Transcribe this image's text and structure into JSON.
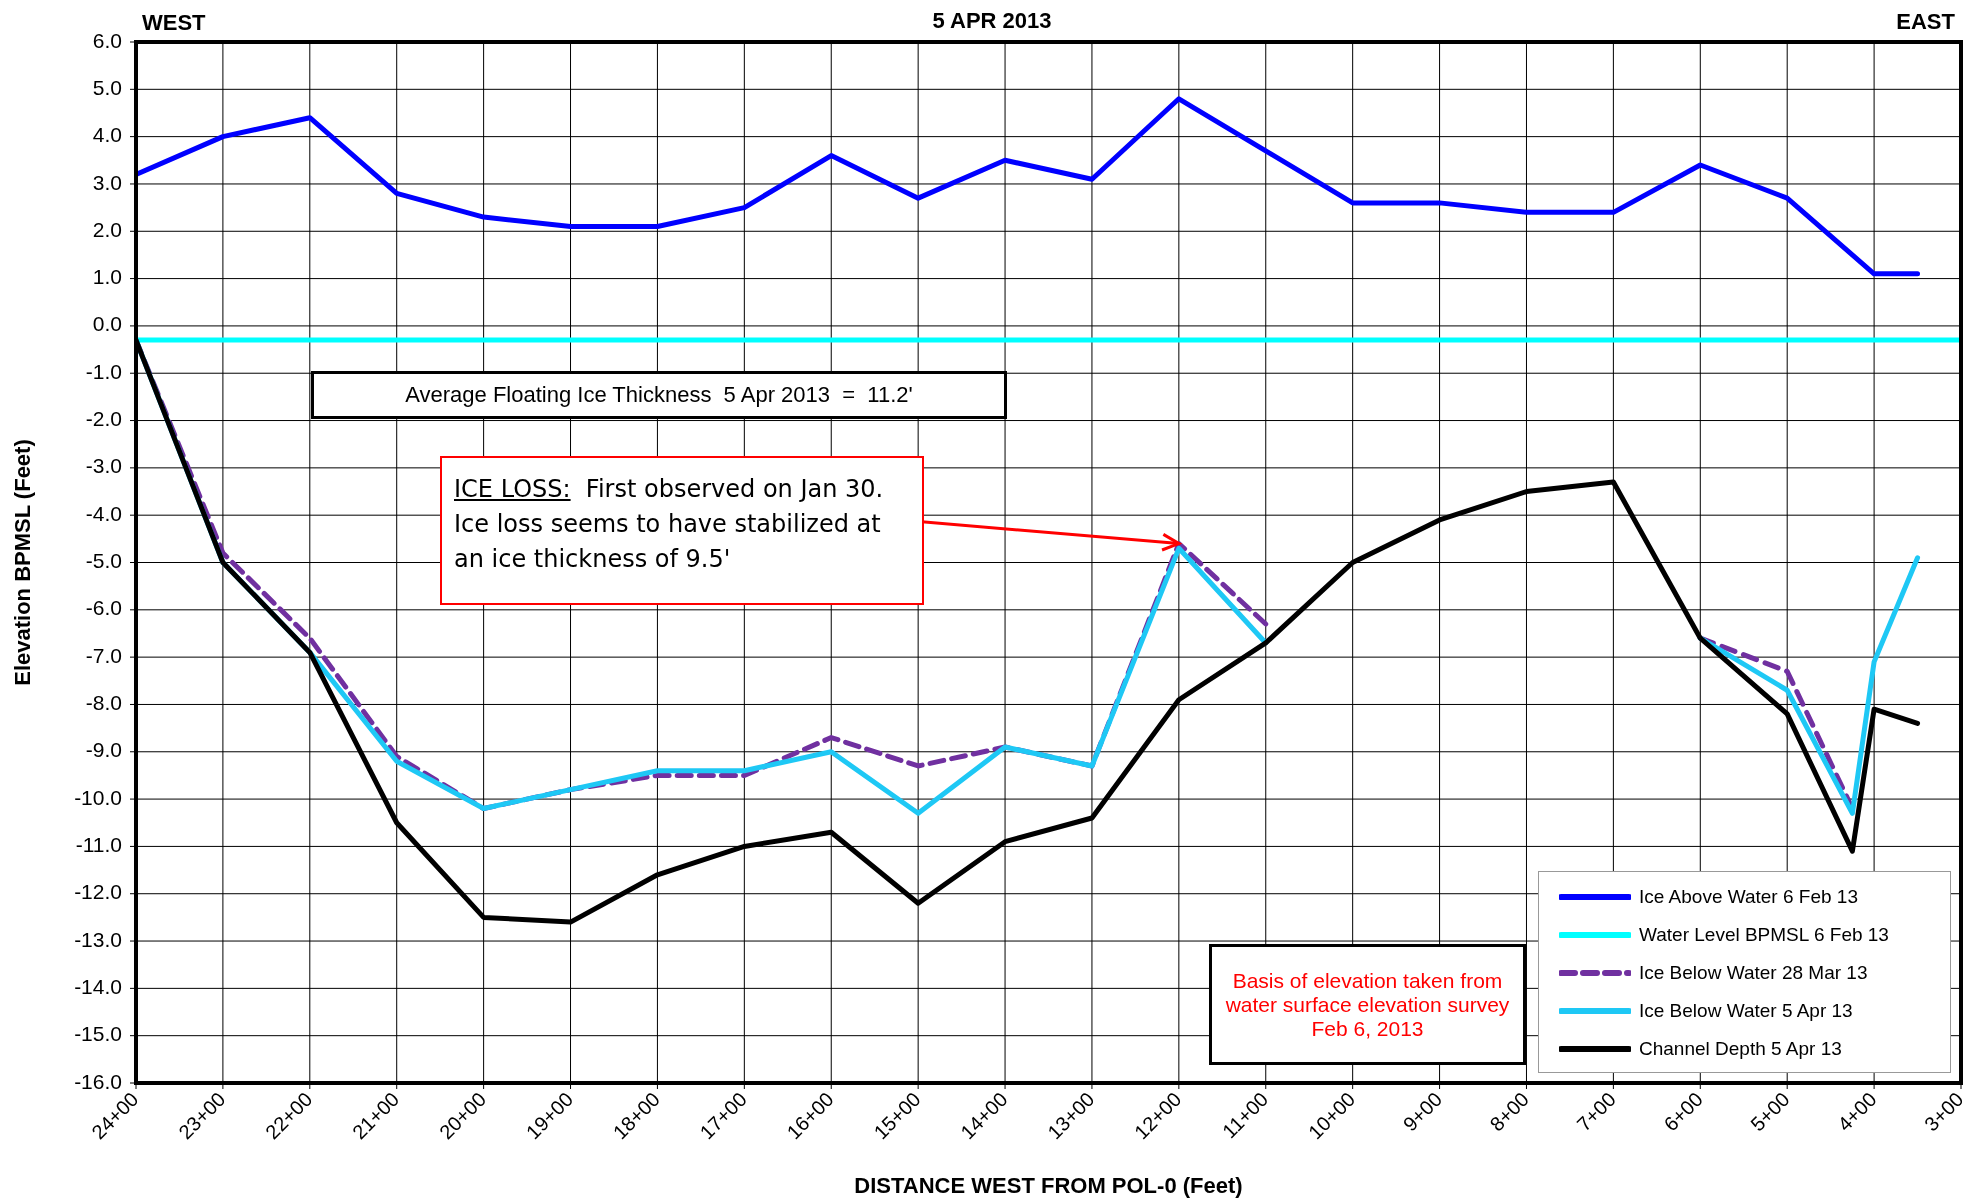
{
  "chart_data": {
    "type": "line",
    "title": "5 APR 2013",
    "xlabel": "DISTANCE WEST FROM POL-0 (Feet)",
    "ylabel": "Elevation BPMSL  (Feet)",
    "annotations": [
      "WEST",
      "EAST",
      "Average Floating Ice Thickness  5 Apr 2013  =  11.2'",
      {
        "text": "ICE LOSS:  First observed on Jan 30. Ice loss seems to have stabilized at an ice thickness of 9.5'",
        "x": "12+00",
        "y": -4.6
      },
      "Basis of elevation taken from water surface elevation survey Feb 6, 2013"
    ],
    "categories": [
      "24+00",
      null,
      null,
      null,
      "23+00",
      null,
      null,
      null,
      "22+00",
      null,
      null,
      null,
      "21+00",
      null,
      null,
      null,
      "20+00",
      null,
      null,
      null,
      "19+00",
      null,
      null,
      null,
      "18+00",
      null,
      null,
      null,
      "17+00",
      null,
      null,
      null,
      "16+00",
      null,
      null,
      null,
      "15+00",
      null,
      null,
      null,
      "14+00",
      null,
      null,
      null,
      "13+00",
      null,
      null,
      null,
      "12+00",
      null,
      null,
      null,
      "11+00",
      null,
      null,
      null,
      "10+00",
      null,
      null,
      null,
      "9+00",
      null,
      null,
      null,
      "8+00",
      null,
      null,
      null,
      "7+00",
      null,
      null,
      null,
      "6+00",
      null,
      null,
      null,
      "5+00",
      null,
      null,
      null,
      "4+00",
      null,
      null,
      null,
      "3+00"
    ],
    "series": [
      {
        "name": "Ice Above Water 6 Feb 13",
        "color": "#0000ff",
        "values": [
          3.2,
          null,
          null,
          null,
          4.0,
          null,
          null,
          null,
          4.4,
          null,
          null,
          null,
          2.8,
          null,
          null,
          null,
          2.3,
          null,
          null,
          null,
          2.1,
          null,
          null,
          null,
          2.1,
          null,
          null,
          null,
          2.5,
          null,
          null,
          null,
          3.6,
          null,
          null,
          null,
          2.7,
          null,
          null,
          null,
          3.5,
          null,
          null,
          null,
          3.1,
          null,
          null,
          null,
          4.8,
          null,
          null,
          null,
          3.7,
          null,
          null,
          null,
          2.6,
          null,
          null,
          null,
          2.6,
          null,
          null,
          null,
          2.4,
          null,
          null,
          null,
          2.4,
          null,
          null,
          null,
          3.4,
          null,
          null,
          null,
          2.7,
          null,
          null,
          null,
          1.1,
          null,
          1.1,
          null,
          null
        ]
      },
      {
        "name": "Water Level  BPMSL 6 Feb 13",
        "color": "#00ffff",
        "values": [
          -0.3,
          null,
          null,
          null,
          null,
          null,
          null,
          null,
          null,
          null,
          null,
          null,
          null,
          null,
          null,
          null,
          null,
          null,
          null,
          null,
          null,
          null,
          null,
          null,
          null,
          null,
          null,
          null,
          null,
          null,
          null,
          null,
          null,
          null,
          null,
          null,
          null,
          null,
          null,
          null,
          null,
          null,
          null,
          null,
          null,
          null,
          null,
          null,
          null,
          null,
          null,
          null,
          null,
          null,
          null,
          null,
          null,
          null,
          null,
          null,
          null,
          null,
          null,
          null,
          null,
          null,
          null,
          null,
          null,
          null,
          null,
          null,
          null,
          null,
          null,
          null,
          null,
          null,
          null,
          null,
          null,
          null,
          null,
          null,
          -0.3
        ]
      },
      {
        "name": "Ice Below Water 28 Mar 13",
        "color": "#7030a0",
        "line_style": "dashed",
        "values": [
          -0.3,
          null,
          null,
          null,
          -4.8,
          null,
          null,
          null,
          -6.6,
          null,
          null,
          null,
          -9.1,
          null,
          null,
          null,
          -10.2,
          null,
          null,
          null,
          -9.8,
          null,
          null,
          null,
          -9.5,
          null,
          null,
          null,
          -9.5,
          null,
          null,
          null,
          -8.7,
          null,
          null,
          null,
          -9.3,
          null,
          null,
          null,
          -8.9,
          null,
          null,
          null,
          -9.3,
          null,
          null,
          null,
          -4.6,
          null,
          null,
          null,
          -6.3,
          null,
          null,
          null,
          null,
          null,
          null,
          null,
          null,
          null,
          null,
          null,
          null,
          null,
          null,
          null,
          null,
          null,
          null,
          null,
          null,
          null,
          null,
          null,
          null,
          null,
          null,
          null,
          null,
          null,
          null,
          null,
          null
        ]
      },
      {
        "color": "#7030a0",
        "line_style": "dashed",
        "values": [
          null,
          null,
          null,
          null,
          null,
          null,
          null,
          null,
          null,
          null,
          null,
          null,
          null,
          null,
          null,
          null,
          null,
          null,
          null,
          null,
          null,
          null,
          null,
          null,
          null,
          null,
          null,
          null,
          null,
          null,
          null,
          null,
          null,
          null,
          null,
          null,
          null,
          null,
          null,
          null,
          null,
          null,
          null,
          null,
          null,
          null,
          null,
          null,
          null,
          null,
          null,
          null,
          null,
          null,
          null,
          null,
          null,
          null,
          null,
          null,
          null,
          null,
          null,
          null,
          null,
          null,
          null,
          null,
          null,
          null,
          null,
          null,
          -6.6,
          null,
          null,
          null,
          -7.3,
          null,
          null,
          -10.2,
          null,
          null,
          null,
          null,
          null
        ]
      },
      {
        "name": "Ice Below Water 5 Apr 13",
        "color": "#1ec8f5",
        "values": [
          -0.3,
          null,
          null,
          null,
          -5.0,
          null,
          null,
          null,
          -6.9,
          null,
          null,
          null,
          -9.2,
          null,
          null,
          null,
          -10.2,
          null,
          null,
          null,
          -9.8,
          null,
          null,
          null,
          -9.4,
          null,
          null,
          null,
          -9.4,
          null,
          null,
          null,
          -9.0,
          null,
          null,
          null,
          -10.3,
          null,
          null,
          null,
          -8.9,
          null,
          null,
          null,
          -9.3,
          null,
          null,
          null,
          -4.7,
          null,
          null,
          null,
          -6.7,
          null,
          null,
          null,
          null,
          null,
          null,
          null,
          null,
          null,
          null,
          null,
          null,
          null,
          null,
          null,
          null,
          null,
          null,
          null,
          null,
          null,
          null,
          null,
          null,
          null,
          null,
          null,
          null,
          null,
          null,
          null,
          null
        ]
      },
      {
        "color": "#1ec8f5",
        "values": [
          null,
          null,
          null,
          null,
          null,
          null,
          null,
          null,
          null,
          null,
          null,
          null,
          null,
          null,
          null,
          null,
          null,
          null,
          null,
          null,
          null,
          null,
          null,
          null,
          null,
          null,
          null,
          null,
          null,
          null,
          null,
          null,
          null,
          null,
          null,
          null,
          null,
          null,
          null,
          null,
          null,
          null,
          null,
          null,
          null,
          null,
          null,
          null,
          null,
          null,
          null,
          null,
          null,
          null,
          null,
          null,
          null,
          null,
          null,
          null,
          null,
          null,
          null,
          null,
          null,
          null,
          null,
          null,
          null,
          null,
          null,
          null,
          -6.6,
          null,
          null,
          null,
          -7.7,
          null,
          null,
          -10.3,
          -7.1,
          null,
          -4.9,
          null,
          null
        ]
      },
      {
        "name": "Channel Depth 5 Apr 13",
        "color": "#000000",
        "values": [
          -0.3,
          null,
          null,
          null,
          -5.0,
          null,
          null,
          null,
          -6.9,
          null,
          null,
          null,
          -10.5,
          null,
          null,
          null,
          -12.5,
          null,
          null,
          null,
          -12.6,
          null,
          null,
          null,
          -11.6,
          null,
          null,
          null,
          -11.0,
          null,
          null,
          null,
          -10.7,
          null,
          null,
          null,
          -12.2,
          null,
          null,
          null,
          -10.9,
          null,
          null,
          null,
          -10.4,
          null,
          null,
          null,
          -7.9,
          null,
          null,
          null,
          -6.7,
          null,
          null,
          null,
          -5.0,
          null,
          null,
          null,
          -4.1,
          null,
          null,
          null,
          -3.5,
          null,
          null,
          null,
          -3.3,
          null,
          null,
          null,
          -6.6,
          null,
          null,
          null,
          -8.2,
          null,
          null,
          -11.1,
          -8.1,
          null,
          -8.4,
          null,
          null
        ]
      }
    ],
    "ylim": [
      -16,
      6
    ],
    "yticks": [
      {
        "value": 6,
        "label": "6.0"
      },
      {
        "value": 5,
        "label": "5.0"
      },
      {
        "value": 4,
        "label": "4.0"
      },
      {
        "value": 3,
        "label": "3.0"
      },
      {
        "value": 2,
        "label": "2.0"
      },
      {
        "value": 1,
        "label": "1.0"
      },
      {
        "value": 0,
        "label": "0.0"
      },
      {
        "value": -1,
        "label": "-1.0"
      },
      {
        "value": -2,
        "label": "-2.0"
      },
      {
        "value": -3,
        "label": "-3.0"
      },
      {
        "value": -4,
        "label": "-4.0"
      },
      {
        "value": -5,
        "label": "-5.0"
      },
      {
        "value": -6,
        "label": "-6.0"
      },
      {
        "value": -7,
        "label": "-7.0"
      },
      {
        "value": -8,
        "label": "-8.0"
      },
      {
        "value": -9,
        "label": "-9.0"
      },
      {
        "value": -10,
        "label": "-10.0"
      },
      {
        "value": -11,
        "label": "-11.0"
      },
      {
        "value": -12,
        "label": "-12.0"
      },
      {
        "value": -13,
        "label": "-13.0"
      },
      {
        "value": -14,
        "label": "-14.0"
      },
      {
        "value": -15,
        "label": "-15.0"
      },
      {
        "value": -16,
        "label": "-16.0"
      }
    ],
    "grid": true,
    "legend": "bottom right",
    "marker": "none",
    "line_style": "solid"
  }
}
